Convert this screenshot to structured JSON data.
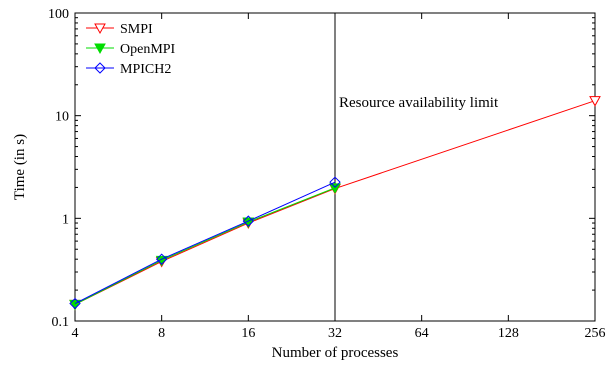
{
  "chart_data": {
    "type": "line",
    "title": "",
    "xlabel": "Number of processes",
    "ylabel": "Time (in s)",
    "xscale": "log2",
    "yscale": "log10",
    "xlim": [
      4,
      256
    ],
    "ylim": [
      0.1,
      100
    ],
    "x_ticks": [
      4,
      8,
      16,
      32,
      64,
      128,
      256
    ],
    "x_tick_labels": [
      "4",
      "8",
      "16",
      "32",
      "64",
      "128",
      "256"
    ],
    "y_ticks": [
      0.1,
      1,
      10,
      100
    ],
    "y_tick_labels": [
      "0.1",
      "1",
      "10",
      "100"
    ],
    "grid": false,
    "legend_position": "top-left",
    "series": [
      {
        "name": "SMPI",
        "color": "#ff0000",
        "marker": "triangle-down-open",
        "x": [
          4,
          8,
          16,
          32,
          256
        ],
        "y": [
          0.145,
          0.38,
          0.9,
          1.95,
          14
        ]
      },
      {
        "name": "OpenMPI",
        "color": "#00dd00",
        "marker": "triangle-down-filled",
        "x": [
          4,
          8,
          16,
          32
        ],
        "y": [
          0.145,
          0.39,
          0.92,
          1.98
        ]
      },
      {
        "name": "MPICH2",
        "color": "#0000ff",
        "marker": "diamond-open",
        "x": [
          4,
          8,
          16,
          32
        ],
        "y": [
          0.148,
          0.4,
          0.94,
          2.25
        ]
      }
    ],
    "annotations": [
      {
        "type": "vertical-line",
        "x": 32,
        "color": "#000000",
        "text": "Resource availability limit"
      }
    ]
  }
}
